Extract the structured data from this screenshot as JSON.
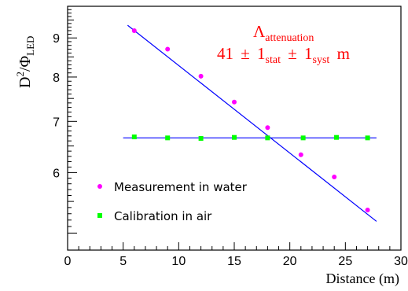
{
  "chart_data": {
    "type": "scatter",
    "x_axis": {
      "label": "Distance (m)",
      "range": [
        0,
        30
      ],
      "major_ticks": [
        0,
        5,
        10,
        15,
        20,
        25,
        30
      ],
      "tick_labels": [
        "0",
        "5",
        "10",
        "15",
        "20",
        "25",
        "30"
      ]
    },
    "y_axis": {
      "label_base": "D",
      "label_sup": "2",
      "label_slash": "/Φ",
      "label_sub": "LED",
      "scale": "log",
      "range": [
        4.75,
        9.9
      ],
      "major_ticks": [
        6,
        7,
        8,
        9
      ],
      "tick_labels": [
        "6",
        "7",
        "8",
        "9"
      ]
    },
    "annotation": {
      "symbol": "Λ",
      "symbol_sub": "attenuation",
      "value": "41",
      "pm1": "±",
      "stat_value": "1",
      "stat_sub": "stat",
      "pm2": "±",
      "syst_value": "1",
      "syst_sub": "syst",
      "unit": "m",
      "color": "#ff0000"
    },
    "series": [
      {
        "name": "Measurement in water",
        "marker": "circle",
        "color": "#ff00ff",
        "x": [
          6,
          9,
          12,
          15,
          18,
          21,
          24,
          27
        ],
        "y": [
          9.2,
          8.7,
          8.02,
          7.42,
          6.87,
          6.33,
          5.92,
          5.36
        ]
      },
      {
        "name": "Calibration in air",
        "marker": "square",
        "color": "#00ff00",
        "x": [
          6,
          9,
          12,
          15,
          18,
          21.2,
          24.2,
          27
        ],
        "y": [
          6.68,
          6.66,
          6.65,
          6.67,
          6.66,
          6.66,
          6.67,
          6.66
        ]
      }
    ],
    "fits": [
      {
        "name": "water-fit",
        "color": "#0000ff",
        "x": [
          5.4,
          27.8
        ],
        "y": [
          9.35,
          5.18
        ]
      },
      {
        "name": "air-fit",
        "color": "#0000ff",
        "x": [
          5,
          27.8
        ],
        "y": [
          6.66,
          6.66
        ]
      }
    ],
    "legend": {
      "placement": "bottom-left"
    },
    "grid": false
  }
}
